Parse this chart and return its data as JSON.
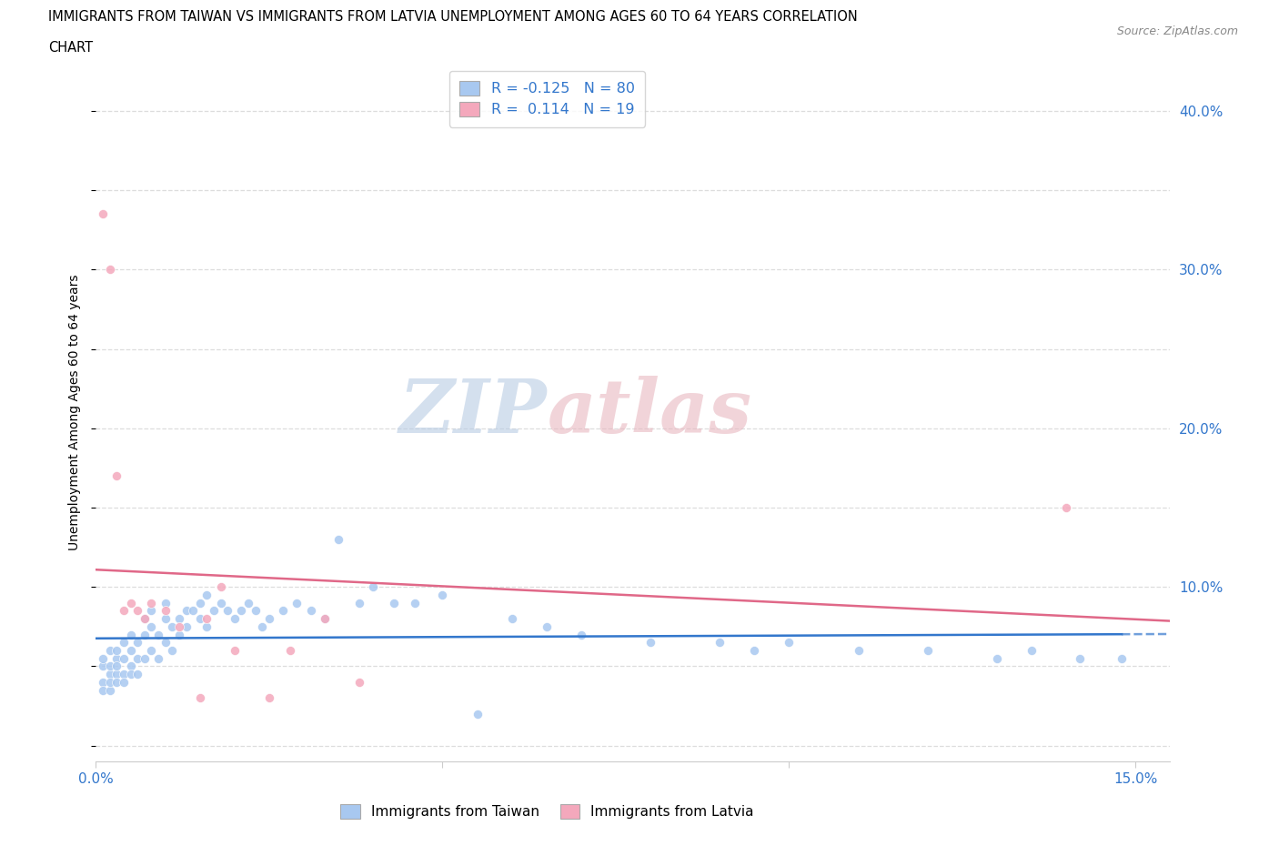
{
  "title_line1": "IMMIGRANTS FROM TAIWAN VS IMMIGRANTS FROM LATVIA UNEMPLOYMENT AMONG AGES 60 TO 64 YEARS CORRELATION",
  "title_line2": "CHART",
  "source": "Source: ZipAtlas.com",
  "ylabel": "Unemployment Among Ages 60 to 64 years",
  "xlim": [
    0.0,
    0.155
  ],
  "ylim": [
    -0.01,
    0.43
  ],
  "taiwan_dot_color": "#a8c8f0",
  "latvia_dot_color": "#f4a8bc",
  "taiwan_line_color": "#3377cc",
  "latvia_line_color": "#e06888",
  "axis_label_color": "#3377cc",
  "taiwan_R": -0.125,
  "taiwan_N": 80,
  "latvia_R": 0.114,
  "latvia_N": 19,
  "taiwan_x": [
    0.001,
    0.001,
    0.001,
    0.001,
    0.002,
    0.002,
    0.002,
    0.002,
    0.002,
    0.003,
    0.003,
    0.003,
    0.003,
    0.003,
    0.004,
    0.004,
    0.004,
    0.004,
    0.005,
    0.005,
    0.005,
    0.005,
    0.006,
    0.006,
    0.006,
    0.007,
    0.007,
    0.007,
    0.008,
    0.008,
    0.008,
    0.009,
    0.009,
    0.01,
    0.01,
    0.01,
    0.011,
    0.011,
    0.012,
    0.012,
    0.013,
    0.013,
    0.014,
    0.015,
    0.015,
    0.016,
    0.016,
    0.017,
    0.018,
    0.019,
    0.02,
    0.021,
    0.022,
    0.023,
    0.024,
    0.025,
    0.027,
    0.029,
    0.031,
    0.033,
    0.035,
    0.038,
    0.04,
    0.043,
    0.046,
    0.05,
    0.055,
    0.06,
    0.065,
    0.07,
    0.08,
    0.09,
    0.095,
    0.1,
    0.11,
    0.12,
    0.13,
    0.135,
    0.142,
    0.148
  ],
  "taiwan_y": [
    0.05,
    0.04,
    0.055,
    0.035,
    0.045,
    0.035,
    0.05,
    0.06,
    0.04,
    0.045,
    0.055,
    0.04,
    0.06,
    0.05,
    0.055,
    0.045,
    0.065,
    0.04,
    0.06,
    0.05,
    0.045,
    0.07,
    0.065,
    0.055,
    0.045,
    0.07,
    0.055,
    0.08,
    0.075,
    0.06,
    0.085,
    0.07,
    0.055,
    0.08,
    0.065,
    0.09,
    0.06,
    0.075,
    0.08,
    0.07,
    0.085,
    0.075,
    0.085,
    0.09,
    0.08,
    0.075,
    0.095,
    0.085,
    0.09,
    0.085,
    0.08,
    0.085,
    0.09,
    0.085,
    0.075,
    0.08,
    0.085,
    0.09,
    0.085,
    0.08,
    0.13,
    0.09,
    0.1,
    0.09,
    0.09,
    0.095,
    0.02,
    0.08,
    0.075,
    0.07,
    0.065,
    0.065,
    0.06,
    0.065,
    0.06,
    0.06,
    0.055,
    0.06,
    0.055,
    0.055
  ],
  "latvia_x": [
    0.001,
    0.002,
    0.003,
    0.004,
    0.005,
    0.006,
    0.007,
    0.008,
    0.01,
    0.012,
    0.015,
    0.016,
    0.018,
    0.02,
    0.025,
    0.028,
    0.033,
    0.038,
    0.14
  ],
  "latvia_y": [
    0.335,
    0.3,
    0.17,
    0.085,
    0.09,
    0.085,
    0.08,
    0.09,
    0.085,
    0.075,
    0.03,
    0.08,
    0.1,
    0.06,
    0.03,
    0.06,
    0.08,
    0.04,
    0.15
  ],
  "watermark_zip": "ZIP",
  "watermark_atlas": "atlas",
  "background_color": "#ffffff",
  "grid_color": "#dddddd"
}
